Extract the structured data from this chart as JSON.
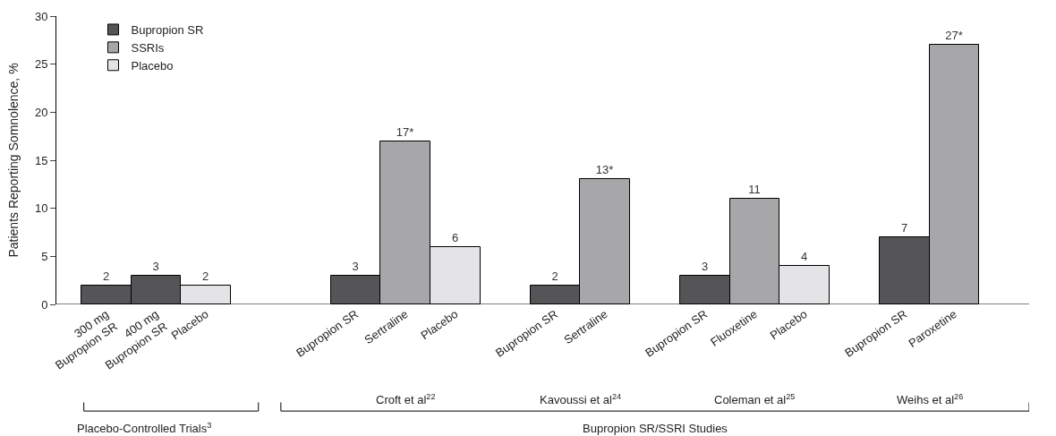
{
  "chart_data": {
    "type": "bar",
    "ylabel": "Patients Reporting Somnolence, %",
    "categories": [
      "300 mg\nBupropion SR",
      "400 mg\nBupropion SR",
      "Placebo",
      null,
      null,
      "Bupropion SR",
      "Sertraline",
      "Placebo",
      null,
      "Bupropion SR",
      "Sertraline",
      null,
      "Bupropion SR",
      "Fluoxetine",
      "Placebo",
      null,
      "Bupropion SR",
      "Paroxetine"
    ],
    "series": [
      {
        "name": "Bupropion SR",
        "color": "#555557",
        "values": [
          2,
          3,
          null,
          null,
          null,
          3,
          null,
          null,
          null,
          2,
          null,
          null,
          3,
          null,
          null,
          null,
          7,
          null
        ],
        "value_labels": [
          "2",
          "3",
          null,
          null,
          null,
          "3",
          null,
          null,
          null,
          "2",
          null,
          null,
          "3",
          null,
          null,
          null,
          "7",
          null
        ]
      },
      {
        "name": "SSRIs",
        "color": "#a7a7a9",
        "values": [
          null,
          null,
          null,
          null,
          null,
          null,
          17,
          null,
          null,
          null,
          13,
          null,
          null,
          11,
          null,
          null,
          null,
          27
        ],
        "value_labels": [
          null,
          null,
          null,
          null,
          null,
          null,
          "17*",
          null,
          null,
          null,
          "13*",
          null,
          null,
          "11",
          null,
          null,
          null,
          "27*"
        ]
      },
      {
        "name": "Placebo",
        "color": "#e4e4e6",
        "values": [
          null,
          null,
          2,
          null,
          null,
          null,
          null,
          6,
          null,
          null,
          null,
          null,
          null,
          null,
          4,
          null,
          null,
          null
        ],
        "value_labels": [
          null,
          null,
          "2",
          null,
          null,
          null,
          null,
          "6",
          null,
          null,
          null,
          null,
          null,
          null,
          "4",
          null,
          null,
          null
        ]
      }
    ],
    "ylim": [
      0,
      30
    ],
    "yticks": [
      0,
      5,
      10,
      15,
      20,
      25,
      30
    ],
    "legend": "top left",
    "annotations": [
      "Croft et al$^{22}$",
      "Kavoussi et al$^{24}$",
      "Coleman et al$^{25}$",
      "Weihs et al$^{26}$",
      "Placebo-Controlled Trials$^{3}$",
      "Bupropion SR/SSRI Studies"
    ]
  }
}
